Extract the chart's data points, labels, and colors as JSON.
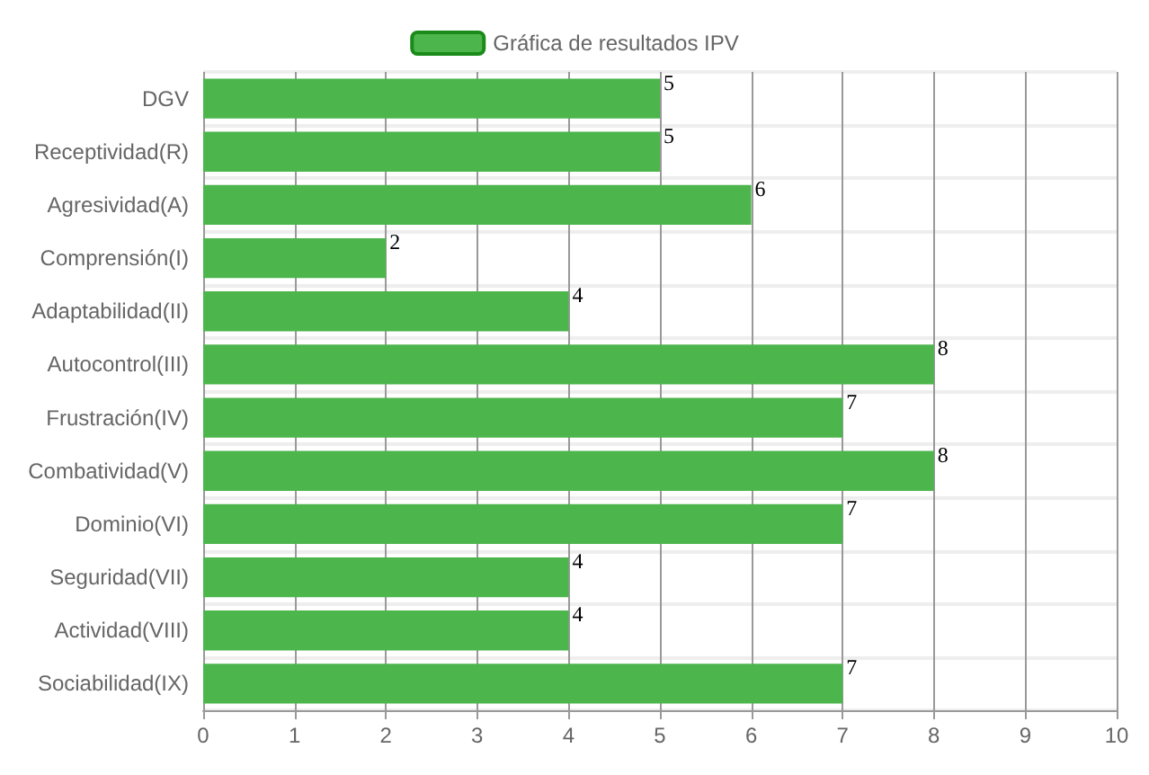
{
  "chart_data": {
    "type": "bar",
    "orientation": "horizontal",
    "categories": [
      "DGV",
      "Receptividad(R)",
      "Agresividad(A)",
      "Comprensión(I)",
      "Adaptabilidad(II)",
      "Autocontrol(III)",
      "Frustración(IV)",
      "Combatividad(V)",
      "Dominio(VI)",
      "Seguridad(VII)",
      "Actividad(VIII)",
      "Sociabilidad(IX)"
    ],
    "series": [
      {
        "name": "Gráfica de resultados IPV",
        "color": "#4cb54c",
        "values": [
          5,
          5,
          6,
          2,
          4,
          8,
          7,
          8,
          7,
          4,
          4,
          7
        ]
      }
    ],
    "xlim": [
      0,
      10
    ],
    "xticks": [
      0,
      1,
      2,
      3,
      4,
      5,
      6,
      7,
      8,
      9,
      10
    ],
    "grid": true,
    "legend": "top",
    "data_labels": true
  }
}
